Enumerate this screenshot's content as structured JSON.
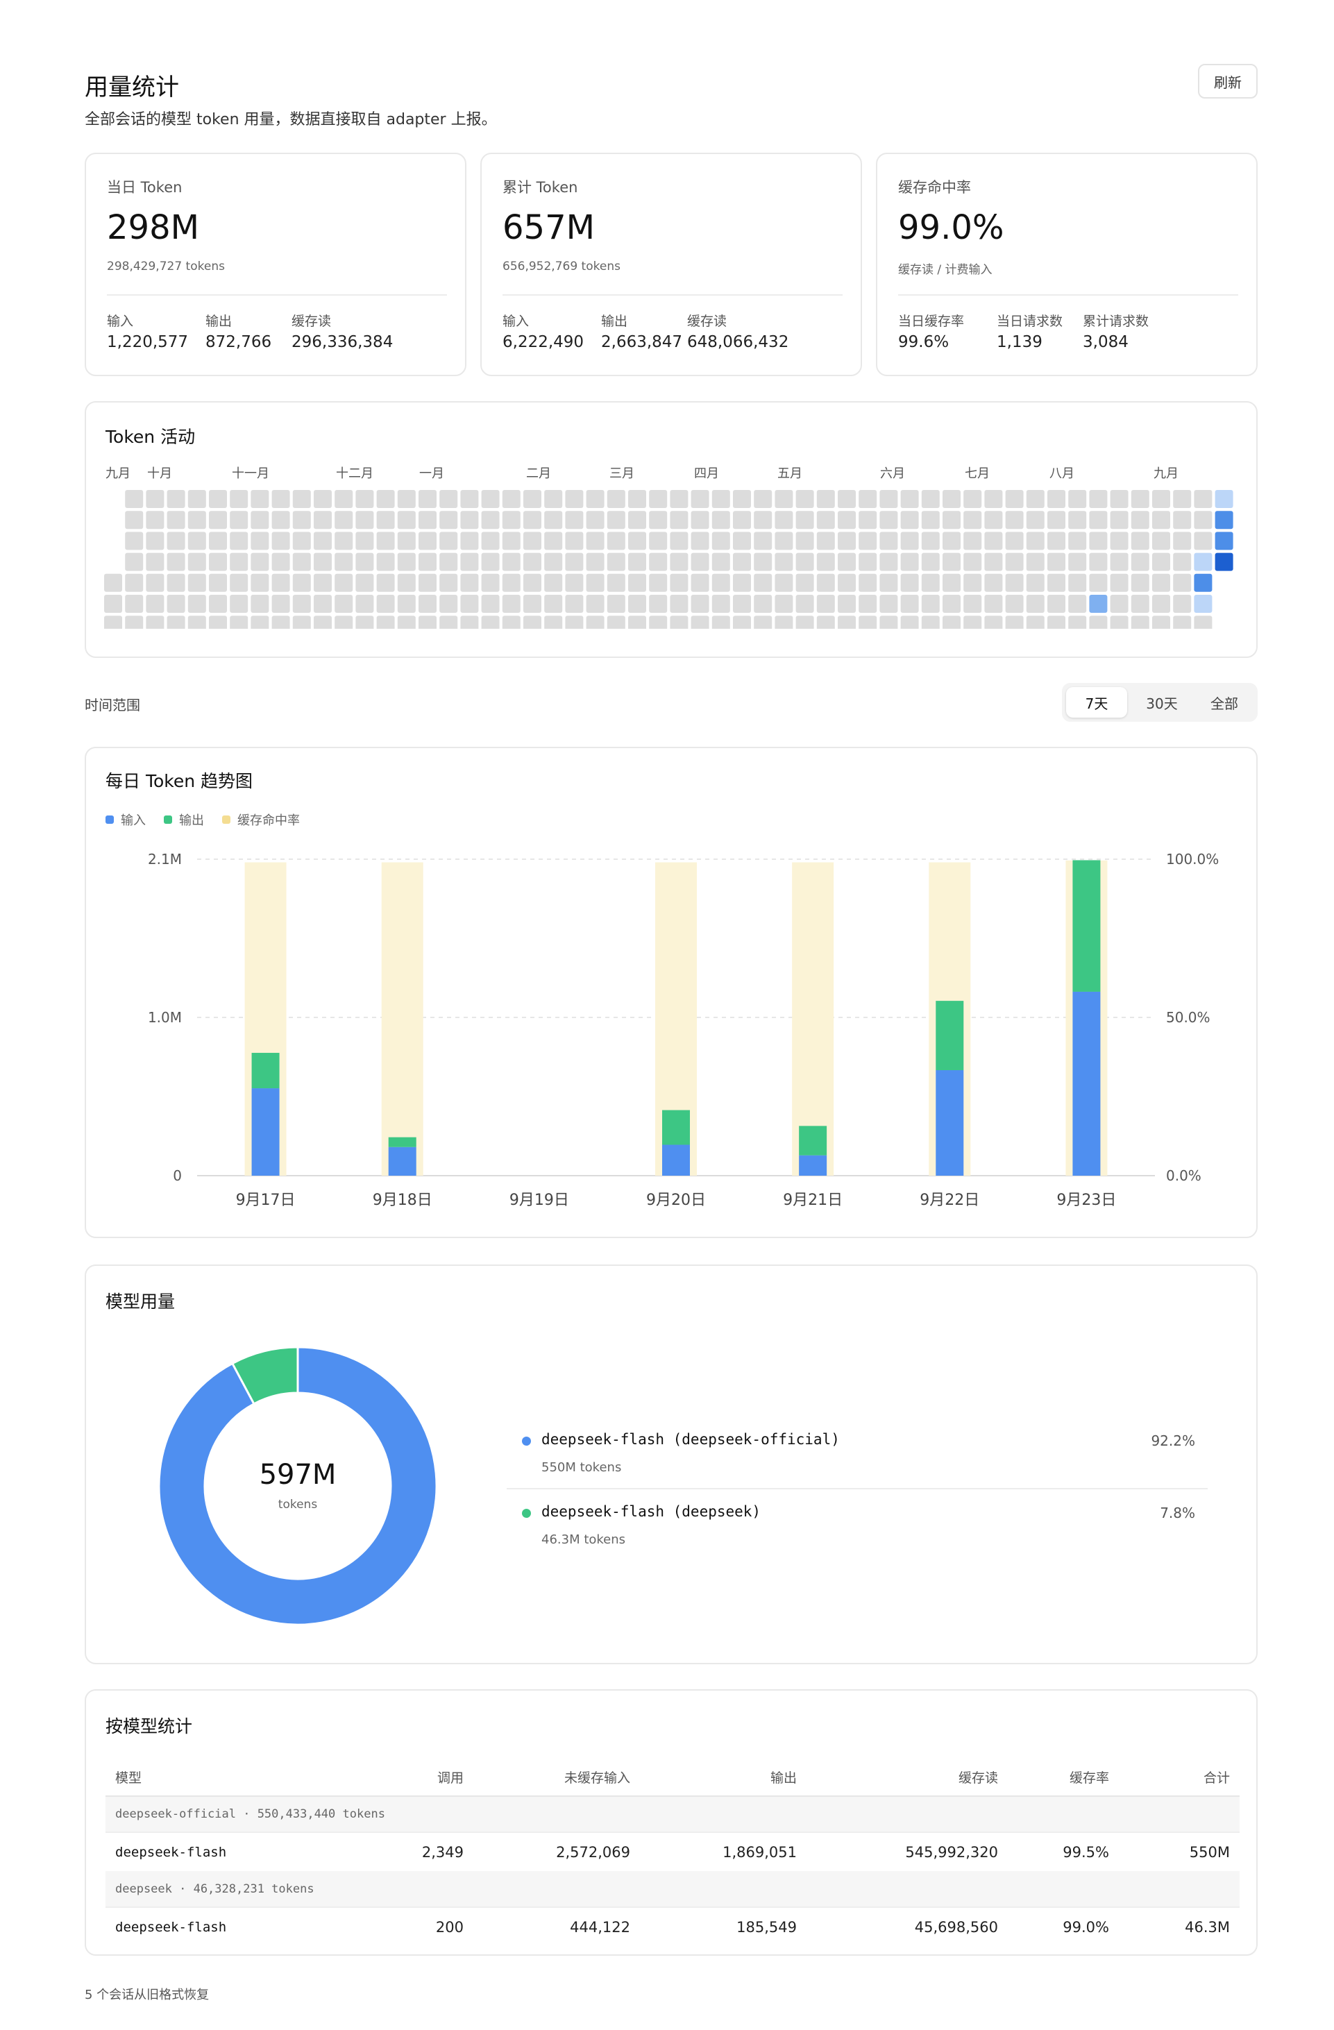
{
  "header": {
    "title": "用量统计",
    "subtitle": "全部会话的模型 token 用量，数据直接取自 adapter 上报。",
    "refresh_label": "刷新"
  },
  "stats": [
    {
      "title": "当日 Token",
      "big": "298M",
      "small": "298,429,727 tokens",
      "kvs": [
        {
          "label": "输入",
          "value": "1,220,577"
        },
        {
          "label": "输出",
          "value": "872,766"
        },
        {
          "label": "缓存读",
          "value": "296,336,384"
        }
      ]
    },
    {
      "title": "累计 Token",
      "big": "657M",
      "small": "656,952,769 tokens",
      "kvs": [
        {
          "label": "输入",
          "value": "6,222,490"
        },
        {
          "label": "输出",
          "value": "2,663,847"
        },
        {
          "label": "缓存读",
          "value": "648,066,432"
        }
      ]
    },
    {
      "title": "缓存命中率",
      "big": "99.0%",
      "small": "缓存读 / 计费输入",
      "kvs": [
        {
          "label": "当日缓存率",
          "value": "99.6%"
        },
        {
          "label": "当日请求数",
          "value": "1,139"
        },
        {
          "label": "累计请求数",
          "value": "3,084"
        }
      ]
    }
  ],
  "activity": {
    "title": "Token 活动",
    "months": [
      "九月",
      "十月",
      "十一月",
      "十二月",
      "一月",
      "二月",
      "三月",
      "四月",
      "五月",
      "六月",
      "七月",
      "八月",
      "九月"
    ],
    "colors": {
      "empty": "#dcdcdc",
      "l1": "#bcd6f8",
      "l2": "#7fb0f0",
      "l3": "#4d8ee8",
      "l4": "#1c5fd0"
    }
  },
  "range": {
    "label": "时间范围",
    "options": [
      "7天",
      "30天",
      "全部"
    ],
    "selected": "7天"
  },
  "trend": {
    "title": "每日 Token 趋势图",
    "legend": [
      {
        "name": "输入",
        "color": "#4f8ff0"
      },
      {
        "name": "输出",
        "color": "#3dc684"
      },
      {
        "name": "缓存命中率",
        "color": "#f4dd92"
      }
    ],
    "y_left_ticks": [
      "2.1M",
      "1.0M",
      "0"
    ],
    "y_right_ticks": [
      "100.0%",
      "50.0%",
      "0.0%"
    ]
  },
  "chart_data": {
    "type": "bar",
    "title": "每日 Token 趋势图",
    "categories": [
      "9月17日",
      "9月18日",
      "9月19日",
      "9月20日",
      "9月21日",
      "9月22日",
      "9月23日"
    ],
    "ylim": [
      0,
      2100000
    ],
    "y2lim": [
      0,
      100
    ],
    "series": [
      {
        "name": "输入",
        "values": [
          580000,
          190000,
          0,
          205000,
          135000,
          700000,
          1220577
        ],
        "stack": "tokens"
      },
      {
        "name": "输出",
        "values": [
          235000,
          65000,
          0,
          230000,
          195000,
          460000,
          872766
        ],
        "stack": "tokens"
      },
      {
        "name": "缓存命中率",
        "values": [
          99.0,
          99.0,
          0,
          99.0,
          99.0,
          99.0,
          99.6
        ],
        "axis": "right"
      }
    ]
  },
  "models": {
    "title": "模型用量",
    "center_value": "597M",
    "center_unit": "tokens",
    "items": [
      {
        "name": "deepseek-flash (deepseek-official)",
        "tokens": "550M tokens",
        "pct": "92.2%",
        "value": 92.2,
        "color": "#4f8ff0"
      },
      {
        "name": "deepseek-flash (deepseek)",
        "tokens": "46.3M tokens",
        "pct": "7.8%",
        "value": 7.8,
        "color": "#3dc684"
      }
    ]
  },
  "by_model": {
    "title": "按模型统计",
    "columns": [
      "模型",
      "调用",
      "未缓存输入",
      "输出",
      "缓存读",
      "缓存率",
      "合计"
    ],
    "groups": [
      {
        "label": "deepseek-official · 550,433,440 tokens",
        "rows": [
          [
            "deepseek-flash",
            "2,349",
            "2,572,069",
            "1,869,051",
            "545,992,320",
            "99.5%",
            "550M"
          ]
        ]
      },
      {
        "label": "deepseek · 46,328,231 tokens",
        "rows": [
          [
            "deepseek-flash",
            "200",
            "444,122",
            "185,549",
            "45,698,560",
            "99.0%",
            "46.3M"
          ]
        ]
      }
    ]
  },
  "footer": {
    "note": "5 个会话从旧格式恢复"
  }
}
